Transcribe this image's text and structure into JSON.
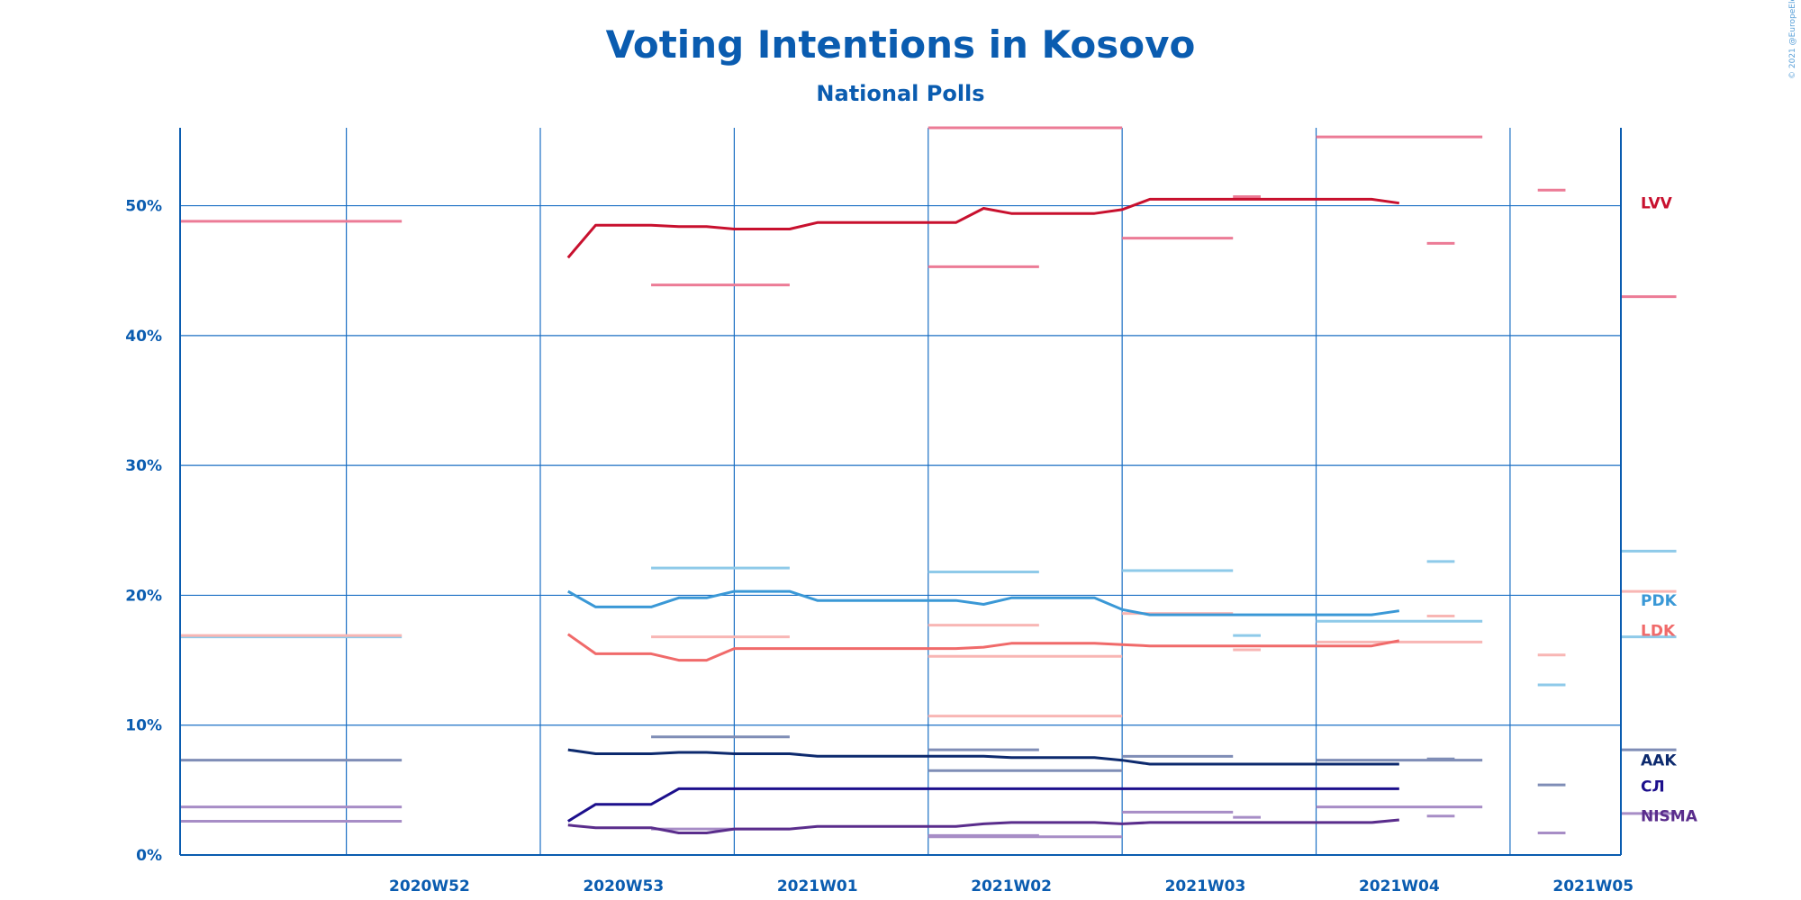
{
  "chart_data": {
    "type": "line",
    "title": "Voting Intentions in Kosovo",
    "subtitle": "National Polls",
    "copyright": "© 2021 @EuropeElects",
    "ylim": [
      0,
      56
    ],
    "y_ticks": [
      0,
      10,
      20,
      30,
      40,
      50
    ],
    "y_tick_labels": [
      "0%",
      "10%",
      "20%",
      "30%",
      "40%",
      "50%"
    ],
    "x_range": [
      "2020-12-18",
      "2021-02-08"
    ],
    "x_tick_labels": [
      "2020W52",
      "2020W53",
      "2021W01",
      "2021W02",
      "2021W03",
      "2021W04",
      "2021W05"
    ],
    "x_tick_dates": [
      "2020-12-27",
      "2021-01-03",
      "2021-01-10",
      "2021-01-17",
      "2021-01-24",
      "2021-01-31",
      "2021-02-07"
    ],
    "grid_dates": [
      "2020-12-24",
      "2020-12-31",
      "2021-01-07",
      "2021-01-14",
      "2021-01-21",
      "2021-01-28",
      "2021-02-04"
    ],
    "grid": true,
    "legend": "right",
    "series": [
      {
        "name": "LVV",
        "color": "#c8102e",
        "poll_color": "#ec7b96",
        "trend": [
          [
            "2021-01-01",
            46.0
          ],
          [
            "2021-01-02",
            48.5
          ],
          [
            "2021-01-04",
            48.5
          ],
          [
            "2021-01-05",
            48.4
          ],
          [
            "2021-01-06",
            48.4
          ],
          [
            "2021-01-07",
            48.2
          ],
          [
            "2021-01-09",
            48.2
          ],
          [
            "2021-01-10",
            48.7
          ],
          [
            "2021-01-14",
            48.7
          ],
          [
            "2021-01-15",
            48.7
          ],
          [
            "2021-01-16",
            49.8
          ],
          [
            "2021-01-17",
            49.4
          ],
          [
            "2021-01-20",
            49.4
          ],
          [
            "2021-01-21",
            49.7
          ],
          [
            "2021-01-22",
            50.5
          ],
          [
            "2021-01-30",
            50.5
          ],
          [
            "2021-01-31",
            50.2
          ]
        ],
        "polls": [
          [
            "2020-12-18",
            "2020-12-26",
            48.8
          ],
          [
            "2021-01-04",
            "2021-01-09",
            43.9
          ],
          [
            "2021-01-14",
            "2021-01-21",
            56.0
          ],
          [
            "2021-01-14",
            "2021-01-18",
            45.3
          ],
          [
            "2021-01-21",
            "2021-01-25",
            47.5
          ],
          [
            "2021-01-25",
            "2021-01-26",
            50.7
          ],
          [
            "2021-01-28",
            "2021-02-03",
            55.3
          ],
          [
            "2021-02-01",
            "2021-02-02",
            47.1
          ],
          [
            "2021-02-05",
            "2021-02-06",
            51.2
          ],
          [
            "2021-02-10",
            "2021-02-11",
            43.0
          ]
        ]
      },
      {
        "name": "PDK",
        "color": "#3a98d6",
        "poll_color": "#8ecae9",
        "trend": [
          [
            "2021-01-01",
            20.3
          ],
          [
            "2021-01-02",
            19.1
          ],
          [
            "2021-01-04",
            19.1
          ],
          [
            "2021-01-05",
            19.8
          ],
          [
            "2021-01-06",
            19.8
          ],
          [
            "2021-01-07",
            20.3
          ],
          [
            "2021-01-09",
            20.3
          ],
          [
            "2021-01-10",
            19.6
          ],
          [
            "2021-01-15",
            19.6
          ],
          [
            "2021-01-16",
            19.3
          ],
          [
            "2021-01-17",
            19.8
          ],
          [
            "2021-01-20",
            19.8
          ],
          [
            "2021-01-21",
            18.9
          ],
          [
            "2021-01-22",
            18.5
          ],
          [
            "2021-01-30",
            18.5
          ],
          [
            "2021-01-31",
            18.8
          ]
        ],
        "polls": [
          [
            "2021-01-04",
            "2021-01-09",
            22.1
          ],
          [
            "2021-01-14",
            "2021-01-18",
            21.8
          ],
          [
            "2021-01-21",
            "2021-01-25",
            21.9
          ],
          [
            "2021-01-25",
            "2021-01-26",
            16.9
          ],
          [
            "2021-01-28",
            "2021-02-03",
            18.0
          ],
          [
            "2021-02-01",
            "2021-02-02",
            22.6
          ],
          [
            "2021-02-05",
            "2021-02-06",
            13.1
          ],
          [
            "2021-02-10",
            "2021-02-11",
            23.4
          ],
          [
            "2021-02-10",
            "2021-02-11",
            16.8
          ],
          [
            "2020-12-18",
            "2020-12-26",
            16.8
          ]
        ]
      },
      {
        "name": "LDK",
        "color": "#f06a6a",
        "poll_color": "#f8b6b4",
        "trend": [
          [
            "2021-01-01",
            17.0
          ],
          [
            "2021-01-02",
            15.5
          ],
          [
            "2021-01-04",
            15.5
          ],
          [
            "2021-01-05",
            15.0
          ],
          [
            "2021-01-06",
            15.0
          ],
          [
            "2021-01-07",
            15.9
          ],
          [
            "2021-01-15",
            15.9
          ],
          [
            "2021-01-16",
            16.0
          ],
          [
            "2021-01-17",
            16.3
          ],
          [
            "2021-01-20",
            16.3
          ],
          [
            "2021-01-21",
            16.2
          ],
          [
            "2021-01-22",
            16.1
          ],
          [
            "2021-01-30",
            16.1
          ],
          [
            "2021-01-31",
            16.5
          ]
        ],
        "polls": [
          [
            "2021-01-04",
            "2021-01-09",
            16.8
          ],
          [
            "2021-01-14",
            "2021-01-18",
            17.7
          ],
          [
            "2021-01-14",
            "2021-01-21",
            10.7
          ],
          [
            "2021-01-14",
            "2021-01-21",
            15.3
          ],
          [
            "2021-01-21",
            "2021-01-25",
            18.6
          ],
          [
            "2021-01-25",
            "2021-01-26",
            15.8
          ],
          [
            "2021-01-28",
            "2021-02-03",
            16.4
          ],
          [
            "2021-02-01",
            "2021-02-02",
            18.4
          ],
          [
            "2021-02-05",
            "2021-02-06",
            15.4
          ],
          [
            "2021-02-10",
            "2021-02-11",
            20.3
          ],
          [
            "2020-12-18",
            "2020-12-26",
            16.9
          ]
        ]
      },
      {
        "name": "AAK",
        "color": "#0d2a6e",
        "poll_color": "#7f8db6",
        "trend": [
          [
            "2021-01-01",
            8.1
          ],
          [
            "2021-01-02",
            7.8
          ],
          [
            "2021-01-04",
            7.8
          ],
          [
            "2021-01-05",
            7.9
          ],
          [
            "2021-01-06",
            7.9
          ],
          [
            "2021-01-07",
            7.8
          ],
          [
            "2021-01-09",
            7.8
          ],
          [
            "2021-01-10",
            7.6
          ],
          [
            "2021-01-16",
            7.6
          ],
          [
            "2021-01-17",
            7.5
          ],
          [
            "2021-01-20",
            7.5
          ],
          [
            "2021-01-21",
            7.3
          ],
          [
            "2021-01-22",
            7.0
          ],
          [
            "2021-01-31",
            7.0
          ]
        ],
        "polls": [
          [
            "2020-12-18",
            "2020-12-26",
            7.3
          ],
          [
            "2021-01-04",
            "2021-01-09",
            9.1
          ],
          [
            "2021-01-14",
            "2021-01-18",
            8.1
          ],
          [
            "2021-01-14",
            "2021-01-21",
            6.5
          ],
          [
            "2021-01-21",
            "2021-01-25",
            7.6
          ],
          [
            "2021-01-25",
            "2021-01-26",
            7.0
          ],
          [
            "2021-01-28",
            "2021-02-03",
            7.3
          ],
          [
            "2021-02-01",
            "2021-02-02",
            7.4
          ],
          [
            "2021-02-05",
            "2021-02-06",
            5.4
          ],
          [
            "2021-02-10",
            "2021-02-11",
            8.1
          ]
        ]
      },
      {
        "name": "СЛ",
        "color": "#1c0f8c",
        "poll_color": "#7f8db6",
        "trend": [
          [
            "2021-01-01",
            2.6
          ],
          [
            "2021-01-02",
            3.9
          ],
          [
            "2021-01-04",
            3.9
          ],
          [
            "2021-01-05",
            5.1
          ],
          [
            "2021-01-31",
            5.1
          ]
        ],
        "polls": []
      },
      {
        "name": "NISMA",
        "color": "#5a2d8c",
        "poll_color": "#a78dc6",
        "trend": [
          [
            "2021-01-01",
            2.3
          ],
          [
            "2021-01-02",
            2.1
          ],
          [
            "2021-01-04",
            2.1
          ],
          [
            "2021-01-05",
            1.7
          ],
          [
            "2021-01-06",
            1.7
          ],
          [
            "2021-01-07",
            2.0
          ],
          [
            "2021-01-09",
            2.0
          ],
          [
            "2021-01-10",
            2.2
          ],
          [
            "2021-01-15",
            2.2
          ],
          [
            "2021-01-16",
            2.4
          ],
          [
            "2021-01-17",
            2.5
          ],
          [
            "2021-01-20",
            2.5
          ],
          [
            "2021-01-21",
            2.4
          ],
          [
            "2021-01-22",
            2.5
          ],
          [
            "2021-01-30",
            2.5
          ],
          [
            "2021-01-31",
            2.7
          ]
        ],
        "polls": [
          [
            "2020-12-18",
            "2020-12-26",
            3.7
          ],
          [
            "2020-12-18",
            "2020-12-26",
            2.6
          ],
          [
            "2021-01-04",
            "2021-01-09",
            2.0
          ],
          [
            "2021-01-14",
            "2021-01-18",
            1.5
          ],
          [
            "2021-01-14",
            "2021-01-21",
            1.4
          ],
          [
            "2021-01-21",
            "2021-01-25",
            3.3
          ],
          [
            "2021-01-25",
            "2021-01-26",
            2.9
          ],
          [
            "2021-01-28",
            "2021-02-03",
            3.7
          ],
          [
            "2021-02-01",
            "2021-02-02",
            3.0
          ],
          [
            "2021-02-05",
            "2021-02-06",
            1.7
          ],
          [
            "2021-02-10",
            "2021-02-11",
            3.2
          ]
        ]
      }
    ]
  }
}
